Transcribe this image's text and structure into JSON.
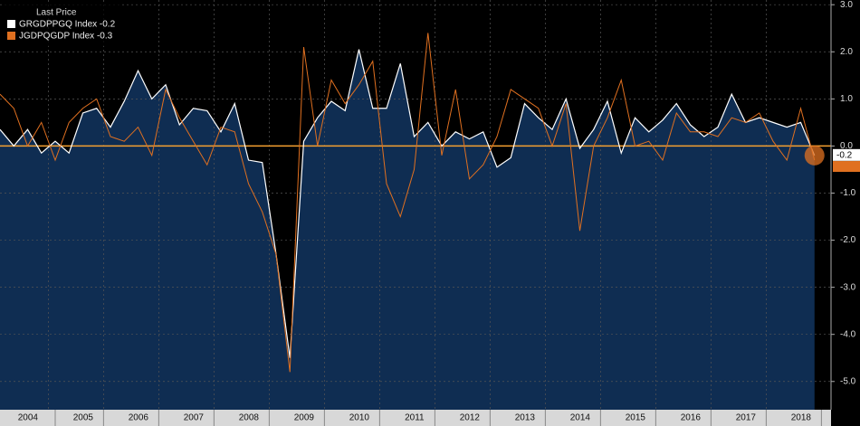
{
  "chart_data": {
    "type": "line",
    "legend_title": "Last Price",
    "legend_position": "top-left",
    "categories": [
      "2004",
      null,
      null,
      null,
      "2005",
      null,
      null,
      null,
      "2006",
      null,
      null,
      null,
      "2007",
      null,
      null,
      null,
      "2008",
      null,
      null,
      null,
      "2009",
      null,
      null,
      null,
      "2010",
      null,
      null,
      null,
      "2011",
      null,
      null,
      null,
      "2012",
      null,
      null,
      null,
      "2013",
      null,
      null,
      null,
      "2014",
      null,
      null,
      null,
      "2015",
      null,
      null,
      null,
      "2016",
      null,
      null,
      null,
      "2017",
      null,
      null,
      null,
      "2018",
      null,
      null,
      null
    ],
    "series": [
      {
        "name": "GRGDPPGQ Index -0.2",
        "color": "#ffffff",
        "area": true,
        "values": [
          0.35,
          0.0,
          0.35,
          -0.15,
          0.1,
          -0.15,
          0.7,
          0.8,
          0.4,
          0.95,
          1.6,
          1.0,
          1.3,
          0.45,
          0.8,
          0.75,
          0.3,
          0.9,
          -0.3,
          -0.35,
          -2.3,
          -4.5,
          0.1,
          0.6,
          0.95,
          0.75,
          2.05,
          0.8,
          0.8,
          1.75,
          0.2,
          0.5,
          0.0,
          0.3,
          0.15,
          0.3,
          -0.45,
          -0.25,
          0.9,
          0.6,
          0.35,
          1.0,
          -0.05,
          0.35,
          0.95,
          -0.15,
          0.6,
          0.3,
          0.55,
          0.9,
          0.45,
          0.2,
          0.4,
          1.1,
          0.5,
          0.6,
          0.5,
          0.4,
          0.5,
          -0.2
        ]
      },
      {
        "name": "JGDPQGDP Index -0.3",
        "color": "#e07020",
        "values": [
          1.1,
          0.8,
          0.0,
          0.5,
          -0.3,
          0.5,
          0.8,
          1.0,
          0.2,
          0.1,
          0.4,
          -0.2,
          1.2,
          0.6,
          0.1,
          -0.4,
          0.4,
          0.3,
          -0.8,
          -1.4,
          -2.3,
          -4.8,
          2.1,
          0.0,
          1.4,
          0.9,
          1.3,
          1.8,
          -0.8,
          -1.5,
          -0.5,
          2.4,
          -0.2,
          1.2,
          -0.7,
          -0.4,
          0.2,
          1.2,
          1.0,
          0.8,
          0.0,
          0.9,
          -1.8,
          0.0,
          0.6,
          1.4,
          0.0,
          0.1,
          -0.3,
          0.7,
          0.3,
          0.3,
          0.2,
          0.6,
          0.5,
          0.7,
          0.1,
          -0.3,
          0.8,
          -0.3
        ]
      }
    ],
    "ylim": [
      -5.6,
      3.1
    ],
    "yticks": [
      {
        "value": 3,
        "label": "3.0"
      },
      {
        "value": 2,
        "label": "2.0"
      },
      {
        "value": 1,
        "label": "1.0"
      },
      {
        "value": 0,
        "label": "0.0"
      },
      {
        "value": -1,
        "label": "-1.0"
      },
      {
        "value": -2,
        "label": "-2.0"
      },
      {
        "value": -3,
        "label": "-3.0"
      },
      {
        "value": -4,
        "label": "-4.0"
      },
      {
        "value": -5,
        "label": "-5.0"
      }
    ],
    "grid": true,
    "zero_line_color": "#f5a030"
  }
}
